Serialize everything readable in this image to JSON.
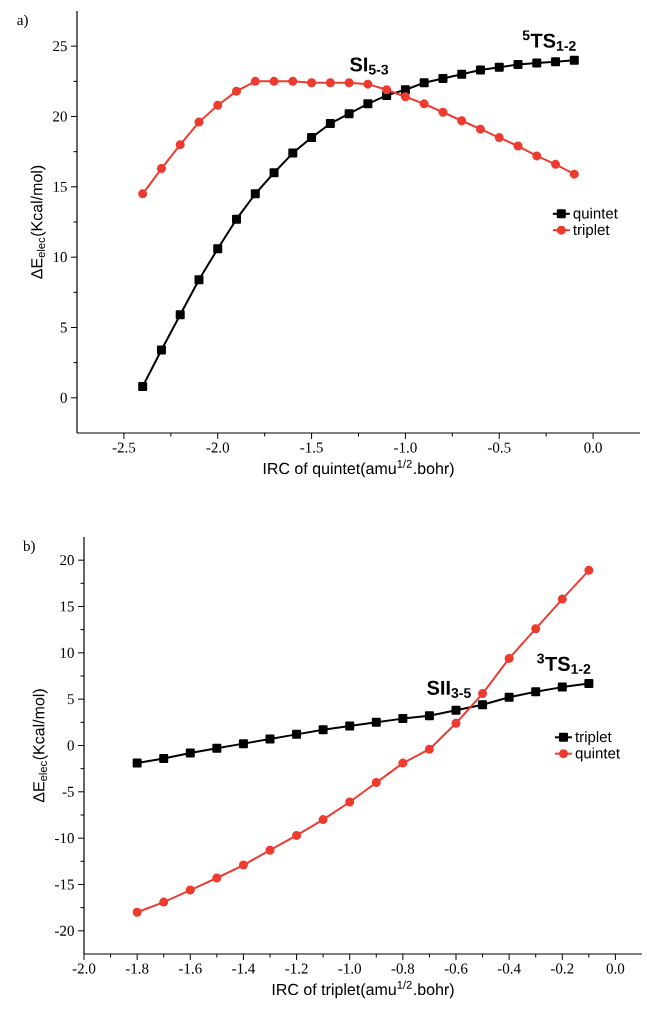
{
  "chart_data": [
    {
      "type": "line",
      "xlabel": "IRC of quintet(amu$^{1/2}$.bohr)",
      "ylabel": "ΔE$_{elec}$(Kcal/mol)",
      "xlim": [
        -2.75,
        0.25
      ],
      "ylim": [
        -2.5,
        27.5
      ],
      "xticks": [
        {
          "value": -2.5,
          "label": "-2.5"
        },
        {
          "value": -2.0,
          "label": "-2.0"
        },
        {
          "value": -1.5,
          "label": "-1.5"
        },
        {
          "value": -1.0,
          "label": "-1.0"
        },
        {
          "value": -0.5,
          "label": "-0.5"
        },
        {
          "value": 0.0,
          "label": "0.0"
        }
      ],
      "yticks": [
        0,
        5,
        10,
        15,
        20,
        25
      ],
      "x": [
        -2.4,
        -2.3,
        -2.2,
        -2.1,
        -2.0,
        -1.9,
        -1.8,
        -1.7,
        -1.6,
        -1.5,
        -1.4,
        -1.3,
        -1.2,
        -1.1,
        -1.0,
        -0.9,
        -0.8,
        -0.7,
        -0.6,
        -0.5,
        -0.4,
        -0.3,
        -0.2,
        -0.1
      ],
      "series": [
        {
          "name": "quintet",
          "color": "#000000",
          "marker": "square",
          "values": [
            0.8,
            3.4,
            5.9,
            8.4,
            10.6,
            12.7,
            14.5,
            16.0,
            17.4,
            18.5,
            19.5,
            20.2,
            20.9,
            21.5,
            21.9,
            22.4,
            22.7,
            23.0,
            23.3,
            23.5,
            23.7,
            23.8,
            23.9,
            24.0
          ]
        },
        {
          "name": "triplet",
          "color": "#ee3b2f",
          "marker": "circle",
          "values": [
            14.5,
            16.3,
            18.0,
            19.6,
            20.8,
            21.8,
            22.5,
            22.5,
            22.5,
            22.4,
            22.4,
            22.4,
            22.3,
            21.9,
            21.4,
            20.9,
            20.3,
            19.7,
            19.1,
            18.5,
            17.9,
            17.2,
            16.6,
            15.9
          ]
        }
      ],
      "annotations": [
        "a)",
        {
          "text": "SI$_{5-3}$",
          "x": -1.1,
          "y": 22.3
        },
        {
          "text": "$^{5}$TS$_{1-2}$",
          "x": -0.1,
          "y": 24.0
        }
      ],
      "legend": "right",
      "grid": false
    },
    {
      "type": "line",
      "xlabel": "IRC of triplet(amu$^{1/2}$.bohr)",
      "ylabel": "ΔE$_{elec}$(Kcal/mol)",
      "xlim": [
        -2.0,
        0.1
      ],
      "ylim": [
        -22.5,
        22.5
      ],
      "xticks": [
        {
          "value": -2.0,
          "label": "-2.0"
        },
        {
          "value": -1.8,
          "label": "-1.8"
        },
        {
          "value": -1.6,
          "label": "-1.6"
        },
        {
          "value": -1.4,
          "label": "-1.4"
        },
        {
          "value": -1.2,
          "label": "-1.2"
        },
        {
          "value": -1.0,
          "label": "-1.0"
        },
        {
          "value": -0.8,
          "label": "-0.8"
        },
        {
          "value": -0.6,
          "label": "-0.6"
        },
        {
          "value": -0.4,
          "label": "-0.4"
        },
        {
          "value": -0.2,
          "label": "-0.2"
        },
        {
          "value": 0.0,
          "label": "0.0"
        }
      ],
      "yticks": [
        -20,
        -15,
        -10,
        -5,
        0,
        5,
        10,
        15,
        20
      ],
      "x": [
        -1.8,
        -1.7,
        -1.6,
        -1.5,
        -1.4,
        -1.3,
        -1.2,
        -1.1,
        -1.0,
        -0.9,
        -0.8,
        -0.7,
        -0.6,
        -0.5,
        -0.4,
        -0.3,
        -0.2,
        -0.1
      ],
      "series": [
        {
          "name": "triplet",
          "color": "#000000",
          "marker": "square",
          "values": [
            -1.9,
            -1.4,
            -0.8,
            -0.3,
            0.2,
            0.7,
            1.2,
            1.7,
            2.1,
            2.5,
            2.9,
            3.2,
            3.8,
            4.4,
            5.2,
            5.8,
            6.3,
            6.7
          ]
        },
        {
          "name": "quintet",
          "color": "#ee3b2f",
          "marker": "circle",
          "values": [
            -18.0,
            -16.9,
            -15.6,
            -14.3,
            -12.9,
            -11.3,
            -9.7,
            -8.0,
            -6.1,
            -4.0,
            -1.9,
            -0.4,
            2.4,
            5.6,
            9.4,
            12.6,
            15.8,
            18.9
          ]
        }
      ],
      "annotations": [
        "b)",
        {
          "text": "SII$_{3-5}$",
          "x": -0.55,
          "y": 4.1
        },
        {
          "text": "$^{3}$TS$_{1-2}$",
          "x": -0.1,
          "y": 6.7
        }
      ],
      "legend": "right",
      "grid": false
    }
  ]
}
